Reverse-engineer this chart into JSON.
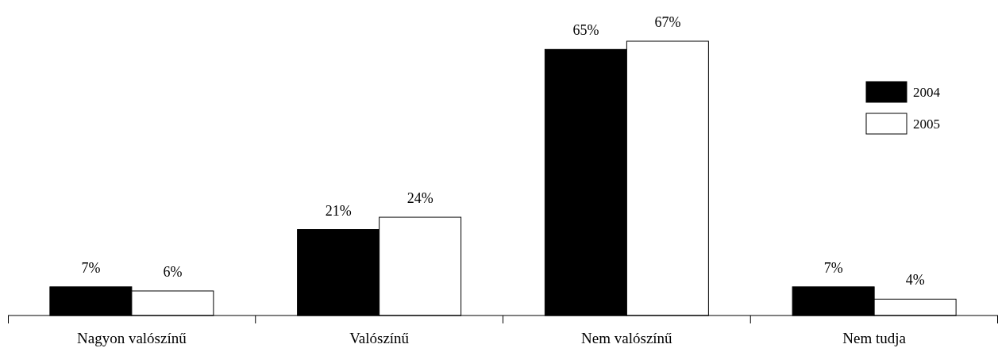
{
  "chart_data": {
    "type": "bar",
    "categories": [
      "Nagyon valószínű",
      "Valószínű",
      "Nem valószínű",
      "Nem tudja"
    ],
    "series": [
      {
        "name": "2004",
        "color": "#000000",
        "values": [
          7,
          21,
          65,
          7
        ],
        "value_labels": [
          "7%",
          "21%",
          "65%",
          "7%"
        ]
      },
      {
        "name": "2005",
        "color": "#ffffff",
        "values": [
          6,
          24,
          67,
          4
        ],
        "value_labels": [
          "6%",
          "24%",
          "67%",
          "4%"
        ]
      }
    ],
    "legend": "right"
  }
}
